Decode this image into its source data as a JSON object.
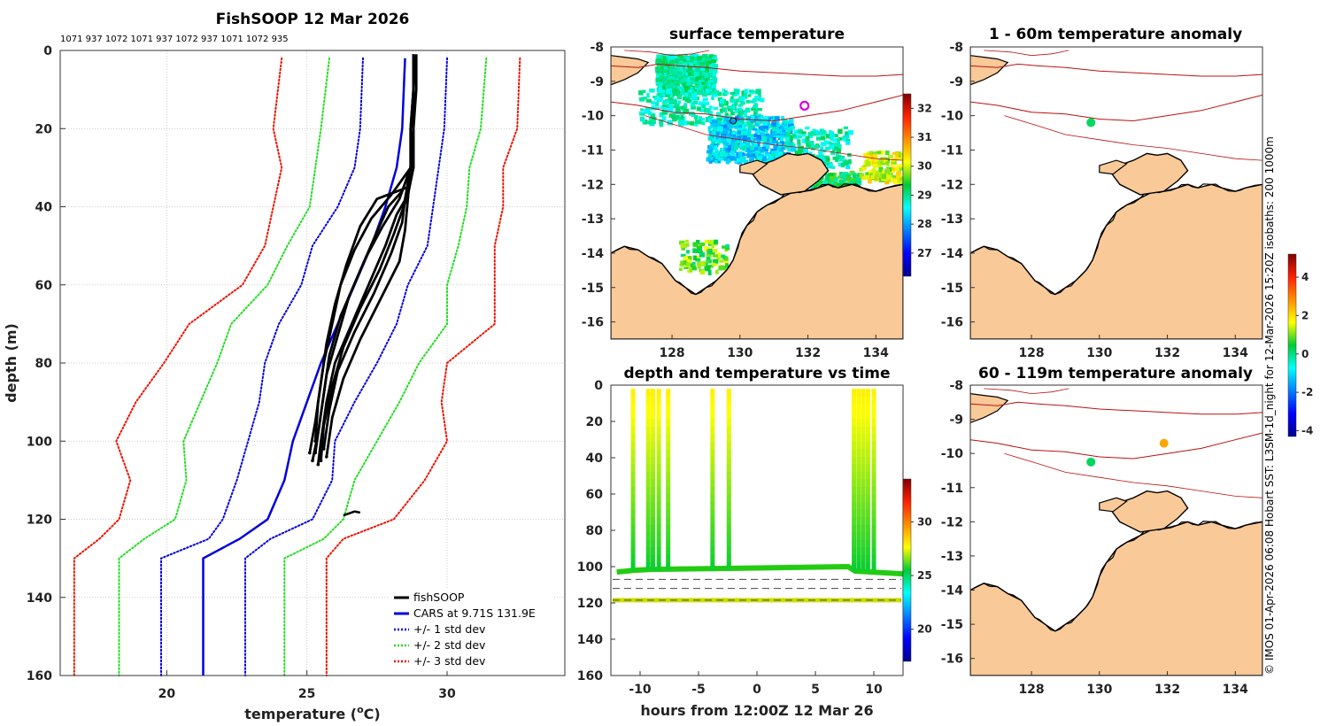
{
  "chart_data": [
    {
      "type": "line",
      "panel": "profile",
      "title": "FishSOOP 12 Mar 2026",
      "top_labels": "1071 937 1072 1071 937 1072 937 1071 1072 935",
      "xlabel": "temperature (°C)",
      "xlabel_main": "temperature (",
      "xlabel_sup": "o",
      "xlabel_end": "C)",
      "ylabel": "depth (m)",
      "xlim": [
        16.2,
        34.2
      ],
      "ylim": [
        0,
        160
      ],
      "xticks": [
        20,
        25,
        30
      ],
      "yticks": [
        0,
        20,
        40,
        60,
        80,
        100,
        120,
        140,
        160
      ],
      "legend": [
        {
          "label": "fishSOOP",
          "color": "#000000",
          "style": "solid"
        },
        {
          "label": "CARS at 9.71S 131.9E",
          "color": "#0000dd",
          "style": "solid"
        },
        {
          "label": "+/- 1 std dev",
          "color": "#0000dd",
          "style": "dotted"
        },
        {
          "label": "+/- 2 std dev",
          "color": "#22dd22",
          "style": "dotted"
        },
        {
          "label": "+/- 3 std dev",
          "color": "#ee1100",
          "style": "dotted"
        }
      ],
      "depths": [
        2,
        20,
        30,
        40,
        50,
        60,
        70,
        80,
        90,
        100,
        110,
        120,
        125,
        130,
        160
      ],
      "cars_mean": [
        28.5,
        28.4,
        28.2,
        27.8,
        27.3,
        26.7,
        26.1,
        25.5,
        25.0,
        24.5,
        24.2,
        23.6,
        22.6,
        21.3,
        21.3
      ],
      "std1_low": [
        27.0,
        26.9,
        26.7,
        26.1,
        25.2,
        24.8,
        24.0,
        23.5,
        23.3,
        22.9,
        22.5,
        22.0,
        21.5,
        19.8,
        19.8
      ],
      "std1_high": [
        30.0,
        29.9,
        29.7,
        29.5,
        29.3,
        28.6,
        28.2,
        27.5,
        26.7,
        26.0,
        25.9,
        25.2,
        23.7,
        22.8,
        22.8
      ],
      "std2_low": [
        25.8,
        25.5,
        25.3,
        25.1,
        24.3,
        23.6,
        22.3,
        21.8,
        21.2,
        20.6,
        20.7,
        20.3,
        19.2,
        18.3,
        18.3
      ],
      "std2_high": [
        31.4,
        31.2,
        30.8,
        30.7,
        30.4,
        30.0,
        30.0,
        29.0,
        28.3,
        27.5,
        26.7,
        26.3,
        25.6,
        24.2,
        24.2
      ],
      "std3_low": [
        24.1,
        23.8,
        24.1,
        23.8,
        23.5,
        22.7,
        20.8,
        19.9,
        18.9,
        18.2,
        18.7,
        18.3,
        17.6,
        16.7,
        16.7
      ],
      "std3_high": [
        32.6,
        32.5,
        32.0,
        32.0,
        31.7,
        31.7,
        31.7,
        30.0,
        29.8,
        30.0,
        29.2,
        28.1,
        26.3,
        25.7,
        25.7
      ],
      "fishsoop_profiles": [
        {
          "depths": [
            1,
            10,
            20,
            30,
            35,
            38,
            45,
            55,
            65,
            75,
            85,
            95,
            103
          ],
          "temps": [
            28.8,
            28.8,
            28.8,
            28.8,
            28.6,
            27.5,
            26.9,
            26.4,
            26.0,
            25.7,
            25.5,
            25.3,
            25.1
          ]
        },
        {
          "depths": [
            1,
            10,
            20,
            30,
            36,
            40,
            48,
            58,
            68,
            78,
            88,
            98,
            105
          ],
          "temps": [
            28.8,
            28.8,
            28.8,
            28.7,
            28.4,
            27.9,
            27.4,
            26.8,
            26.2,
            25.8,
            25.6,
            25.4,
            25.2
          ]
        },
        {
          "depths": [
            1,
            10,
            20,
            30,
            37,
            42,
            50,
            60,
            70,
            80,
            90,
            100,
            106
          ],
          "temps": [
            28.9,
            28.9,
            28.8,
            28.8,
            28.6,
            28.2,
            27.8,
            27.2,
            26.6,
            26.0,
            25.7,
            25.5,
            25.4
          ]
        },
        {
          "depths": [
            1,
            10,
            20,
            30,
            38,
            44,
            52,
            62,
            72,
            82,
            92,
            102
          ],
          "temps": [
            28.8,
            28.8,
            28.8,
            28.7,
            28.5,
            28.4,
            28.0,
            27.4,
            26.7,
            26.1,
            25.8,
            25.6
          ]
        },
        {
          "depths": [
            1,
            10,
            20,
            30,
            38,
            46,
            54,
            64,
            74,
            84,
            94,
            104
          ],
          "temps": [
            28.8,
            28.8,
            28.7,
            28.7,
            28.6,
            28.5,
            28.3,
            27.6,
            26.9,
            26.3,
            25.9,
            25.7
          ]
        },
        {
          "depths": [
            1,
            10,
            20,
            30,
            37,
            43,
            51,
            60,
            70,
            80,
            90,
            100
          ],
          "temps": [
            28.9,
            28.8,
            28.8,
            28.7,
            28.0,
            27.3,
            26.7,
            26.2,
            25.9,
            25.6,
            25.4,
            25.3
          ]
        },
        {
          "depths": [
            1,
            10,
            20,
            30,
            38,
            45,
            53,
            63,
            73,
            83,
            93,
            103
          ],
          "temps": [
            28.8,
            28.8,
            28.8,
            28.7,
            28.3,
            27.7,
            27.1,
            26.5,
            26.1,
            25.7,
            25.5,
            25.3
          ]
        },
        {
          "depths": [
            1,
            10,
            20,
            30,
            39,
            47,
            56,
            66,
            76,
            86,
            96,
            105
          ],
          "temps": [
            28.8,
            28.8,
            28.7,
            28.7,
            28.5,
            28.1,
            27.6,
            26.9,
            26.3,
            25.9,
            25.6,
            25.5
          ]
        }
      ],
      "small_segment": {
        "depths": [
          119,
          118.5,
          118,
          118.3
        ],
        "temps": [
          26.3,
          26.5,
          26.7,
          26.9
        ]
      }
    },
    {
      "type": "heatmap",
      "panel": "surface-temp-map",
      "title": "surface temperature",
      "xticks": [
        128,
        130,
        132,
        134
      ],
      "yticks": [
        -8,
        -9,
        -10,
        -11,
        -12,
        -13,
        -14,
        -15,
        -16
      ],
      "xlim": [
        126.2,
        134.8
      ],
      "ylim": [
        -16.5,
        -8
      ],
      "colorbar": {
        "min": 26.2,
        "max": 32.5,
        "ticks": [
          27,
          28,
          29,
          30,
          31,
          32
        ]
      }
    },
    {
      "type": "scatter",
      "panel": "depth-time",
      "title": "depth and temperature vs time",
      "xlabel": "hours from 12:00Z 12 Mar 26",
      "xlim": [
        -12.5,
        12.5
      ],
      "ylim": [
        0,
        160
      ],
      "xticks": [
        -10,
        -5,
        0,
        5,
        10
      ],
      "yticks": [
        0,
        20,
        40,
        60,
        80,
        100,
        120,
        140,
        160
      ],
      "casts_x": [
        -10.6,
        -9.3,
        -8.9,
        -8.4,
        -7.6,
        -3.8,
        -2.4,
        8.3,
        8.7,
        9.1,
        9.5,
        10.0
      ],
      "bottom_line": {
        "x": [
          -12,
          -10.5,
          -9,
          -2.5,
          7.8,
          8.4,
          12.5
        ],
        "y": [
          103,
          102,
          101.5,
          101,
          100,
          102.5,
          104
        ]
      },
      "deep_line_depth": 118.5,
      "colorbar": {
        "min": 17,
        "max": 34,
        "ticks": [
          20,
          25,
          30
        ]
      }
    },
    {
      "type": "heatmap",
      "panel": "anomaly-1-60",
      "title": "1 - 60m temperature anomaly",
      "xticks": [
        128,
        130,
        132,
        134
      ],
      "yticks": [
        -8,
        -9,
        -10,
        -11,
        -12,
        -13,
        -14,
        -15,
        -16
      ],
      "points": [
        {
          "lon": 129.75,
          "lat": -10.2,
          "anomaly": 0.2
        }
      ],
      "colorbar": {
        "min": -4.3,
        "max": 5.2,
        "ticks": [
          4,
          2,
          0,
          -2,
          -4
        ]
      }
    },
    {
      "type": "heatmap",
      "panel": "anomaly-60-119",
      "title": "60 - 119m temperature anomaly",
      "xticks": [
        128,
        130,
        132,
        134
      ],
      "yticks": [
        -8,
        -9,
        -10,
        -11,
        -12,
        -13,
        -14,
        -15,
        -16
      ],
      "points": [
        {
          "lon": 129.75,
          "lat": -10.25,
          "anomaly": 0.2
        },
        {
          "lon": 131.9,
          "lat": -9.7,
          "anomaly": 2.6
        }
      ]
    }
  ],
  "credit": "© IMOS 01-Apr-2026 06:08 Hobart SST: L3SM-1d_night for 12-Mar-2026 15:20Z isobaths: 200  1000m"
}
